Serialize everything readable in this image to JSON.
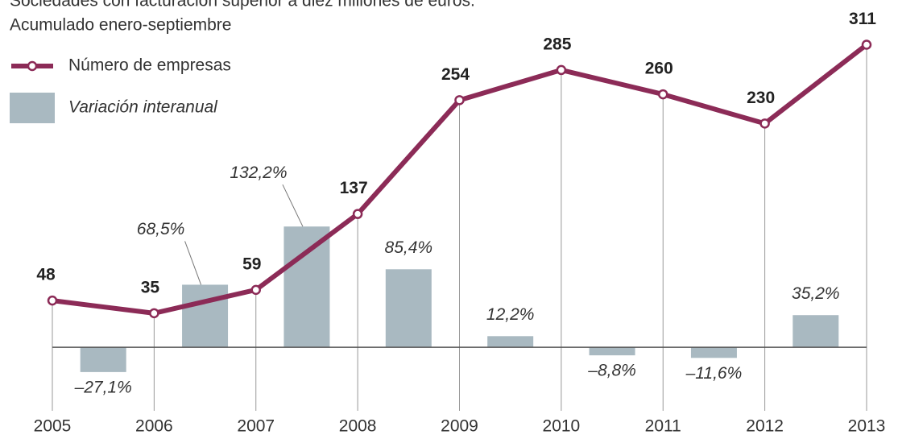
{
  "chart_data": {
    "type": "bar-line",
    "title": "Sociedades con facturación superior a diez millones de euros.",
    "subtitle": "Acumulado enero-septiembre",
    "categories": [
      "2005",
      "2006",
      "2007",
      "2008",
      "2009",
      "2010",
      "2011",
      "2012",
      "2013"
    ],
    "series": [
      {
        "name": "Número de empresas",
        "type": "line",
        "color": "#8c2b57",
        "values": [
          48,
          35,
          59,
          137,
          254,
          285,
          260,
          230,
          311
        ]
      },
      {
        "name": "Variación interanual",
        "type": "bar",
        "axis": "y2",
        "color": "#a9b9c1",
        "values": [
          null,
          -27.1,
          68.5,
          132.2,
          85.4,
          12.2,
          -8.8,
          -11.6,
          35.2
        ],
        "value_labels": [
          null,
          "–27,1%",
          "68,5%",
          "132,2%",
          "85,4%",
          "12,2%",
          "–8,8%",
          "–11,6%",
          "35,2%"
        ]
      }
    ],
    "ylim": [
      -62,
      323
    ],
    "y2lim": [
      -66,
      344
    ]
  }
}
